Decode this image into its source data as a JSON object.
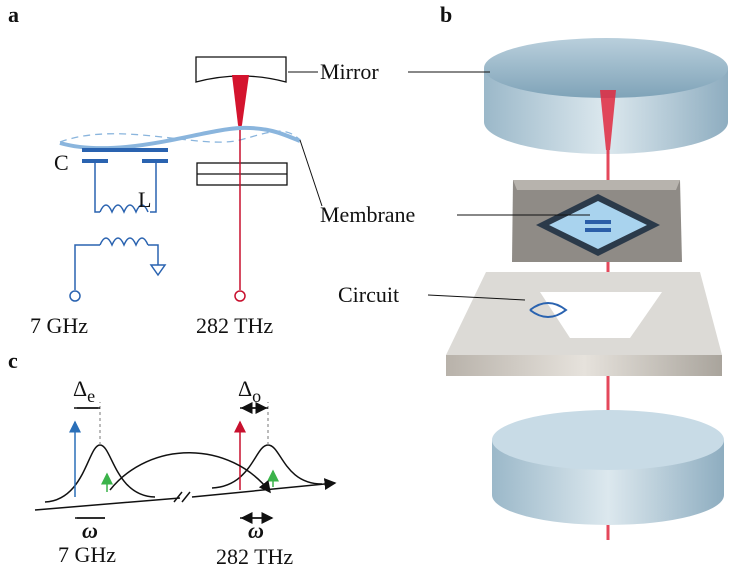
{
  "panels": {
    "a": {
      "label": "a",
      "circuit": {
        "capacitor": "C",
        "inductor": "L"
      },
      "microwave_port": "7 GHz",
      "optical_port": "282 THz"
    },
    "b": {
      "label": "b",
      "callouts": [
        "Mirror",
        "Membrane",
        "Circuit"
      ]
    },
    "c": {
      "label": "c",
      "detunings": [
        {
          "symbol": "Δ",
          "subscript": "e"
        },
        {
          "symbol": "Δ",
          "subscript": "o"
        }
      ],
      "frequency_symbols": [
        "ω",
        "ω"
      ],
      "frequencies": [
        "7 GHz",
        "282 THz"
      ]
    }
  }
}
